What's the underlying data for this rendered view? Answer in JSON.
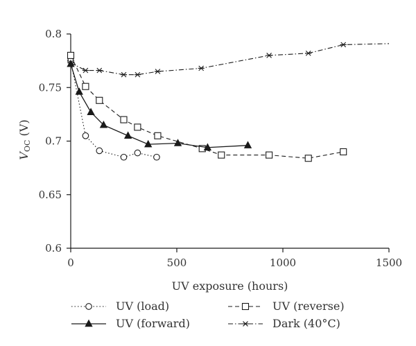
{
  "chart_data": {
    "type": "line",
    "xlabel": "UV exposure (hours)",
    "ylabel_main": "V",
    "ylabel_sub": "OC",
    "ylabel_unit": " (V)",
    "xlim": [
      0,
      1500
    ],
    "ylim": [
      0.6,
      0.8
    ],
    "xticks": [
      0,
      500,
      1000,
      1500
    ],
    "yticks": [
      0.6,
      0.65,
      0.7,
      0.75,
      0.8
    ],
    "xtick_labels": [
      "0",
      "500",
      "1000",
      "1500"
    ],
    "ytick_labels": [
      "0.6",
      "0.65",
      "0.7",
      "0.75",
      "0.8"
    ],
    "grid": false,
    "legend_position": "bottom",
    "series": [
      {
        "name": "UV (load)",
        "marker": "circle-open",
        "line": "dotted",
        "x": [
          0,
          70,
          135,
          250,
          315,
          405
        ],
        "y": [
          0.775,
          0.705,
          0.691,
          0.685,
          0.689,
          0.685
        ]
      },
      {
        "name": "UV (reverse)",
        "marker": "square-open",
        "line": "dashed",
        "x": [
          0,
          70,
          135,
          250,
          315,
          410,
          620,
          710,
          935,
          1120,
          1285
        ],
        "y": [
          0.78,
          0.751,
          0.738,
          0.72,
          0.713,
          0.705,
          0.693,
          0.687,
          0.687,
          0.684,
          0.69
        ]
      },
      {
        "name": "UV (forward)",
        "marker": "triangle-filled",
        "line": "solid",
        "x": [
          0,
          40,
          95,
          155,
          270,
          365,
          505,
          645,
          835
        ],
        "y": [
          0.772,
          0.746,
          0.727,
          0.715,
          0.705,
          0.697,
          0.698,
          0.694,
          0.696
        ]
      },
      {
        "name": "Dark (40°C)",
        "marker": "asterisk",
        "line": "dashdot",
        "x": [
          0,
          70,
          135,
          250,
          315,
          410,
          615,
          935,
          1120,
          1285,
          1500
        ],
        "y": [
          0.773,
          0.766,
          0.766,
          0.762,
          0.762,
          0.765,
          0.768,
          0.78,
          0.782,
          0.79,
          0.791
        ],
        "marked_points": 10
      }
    ]
  }
}
